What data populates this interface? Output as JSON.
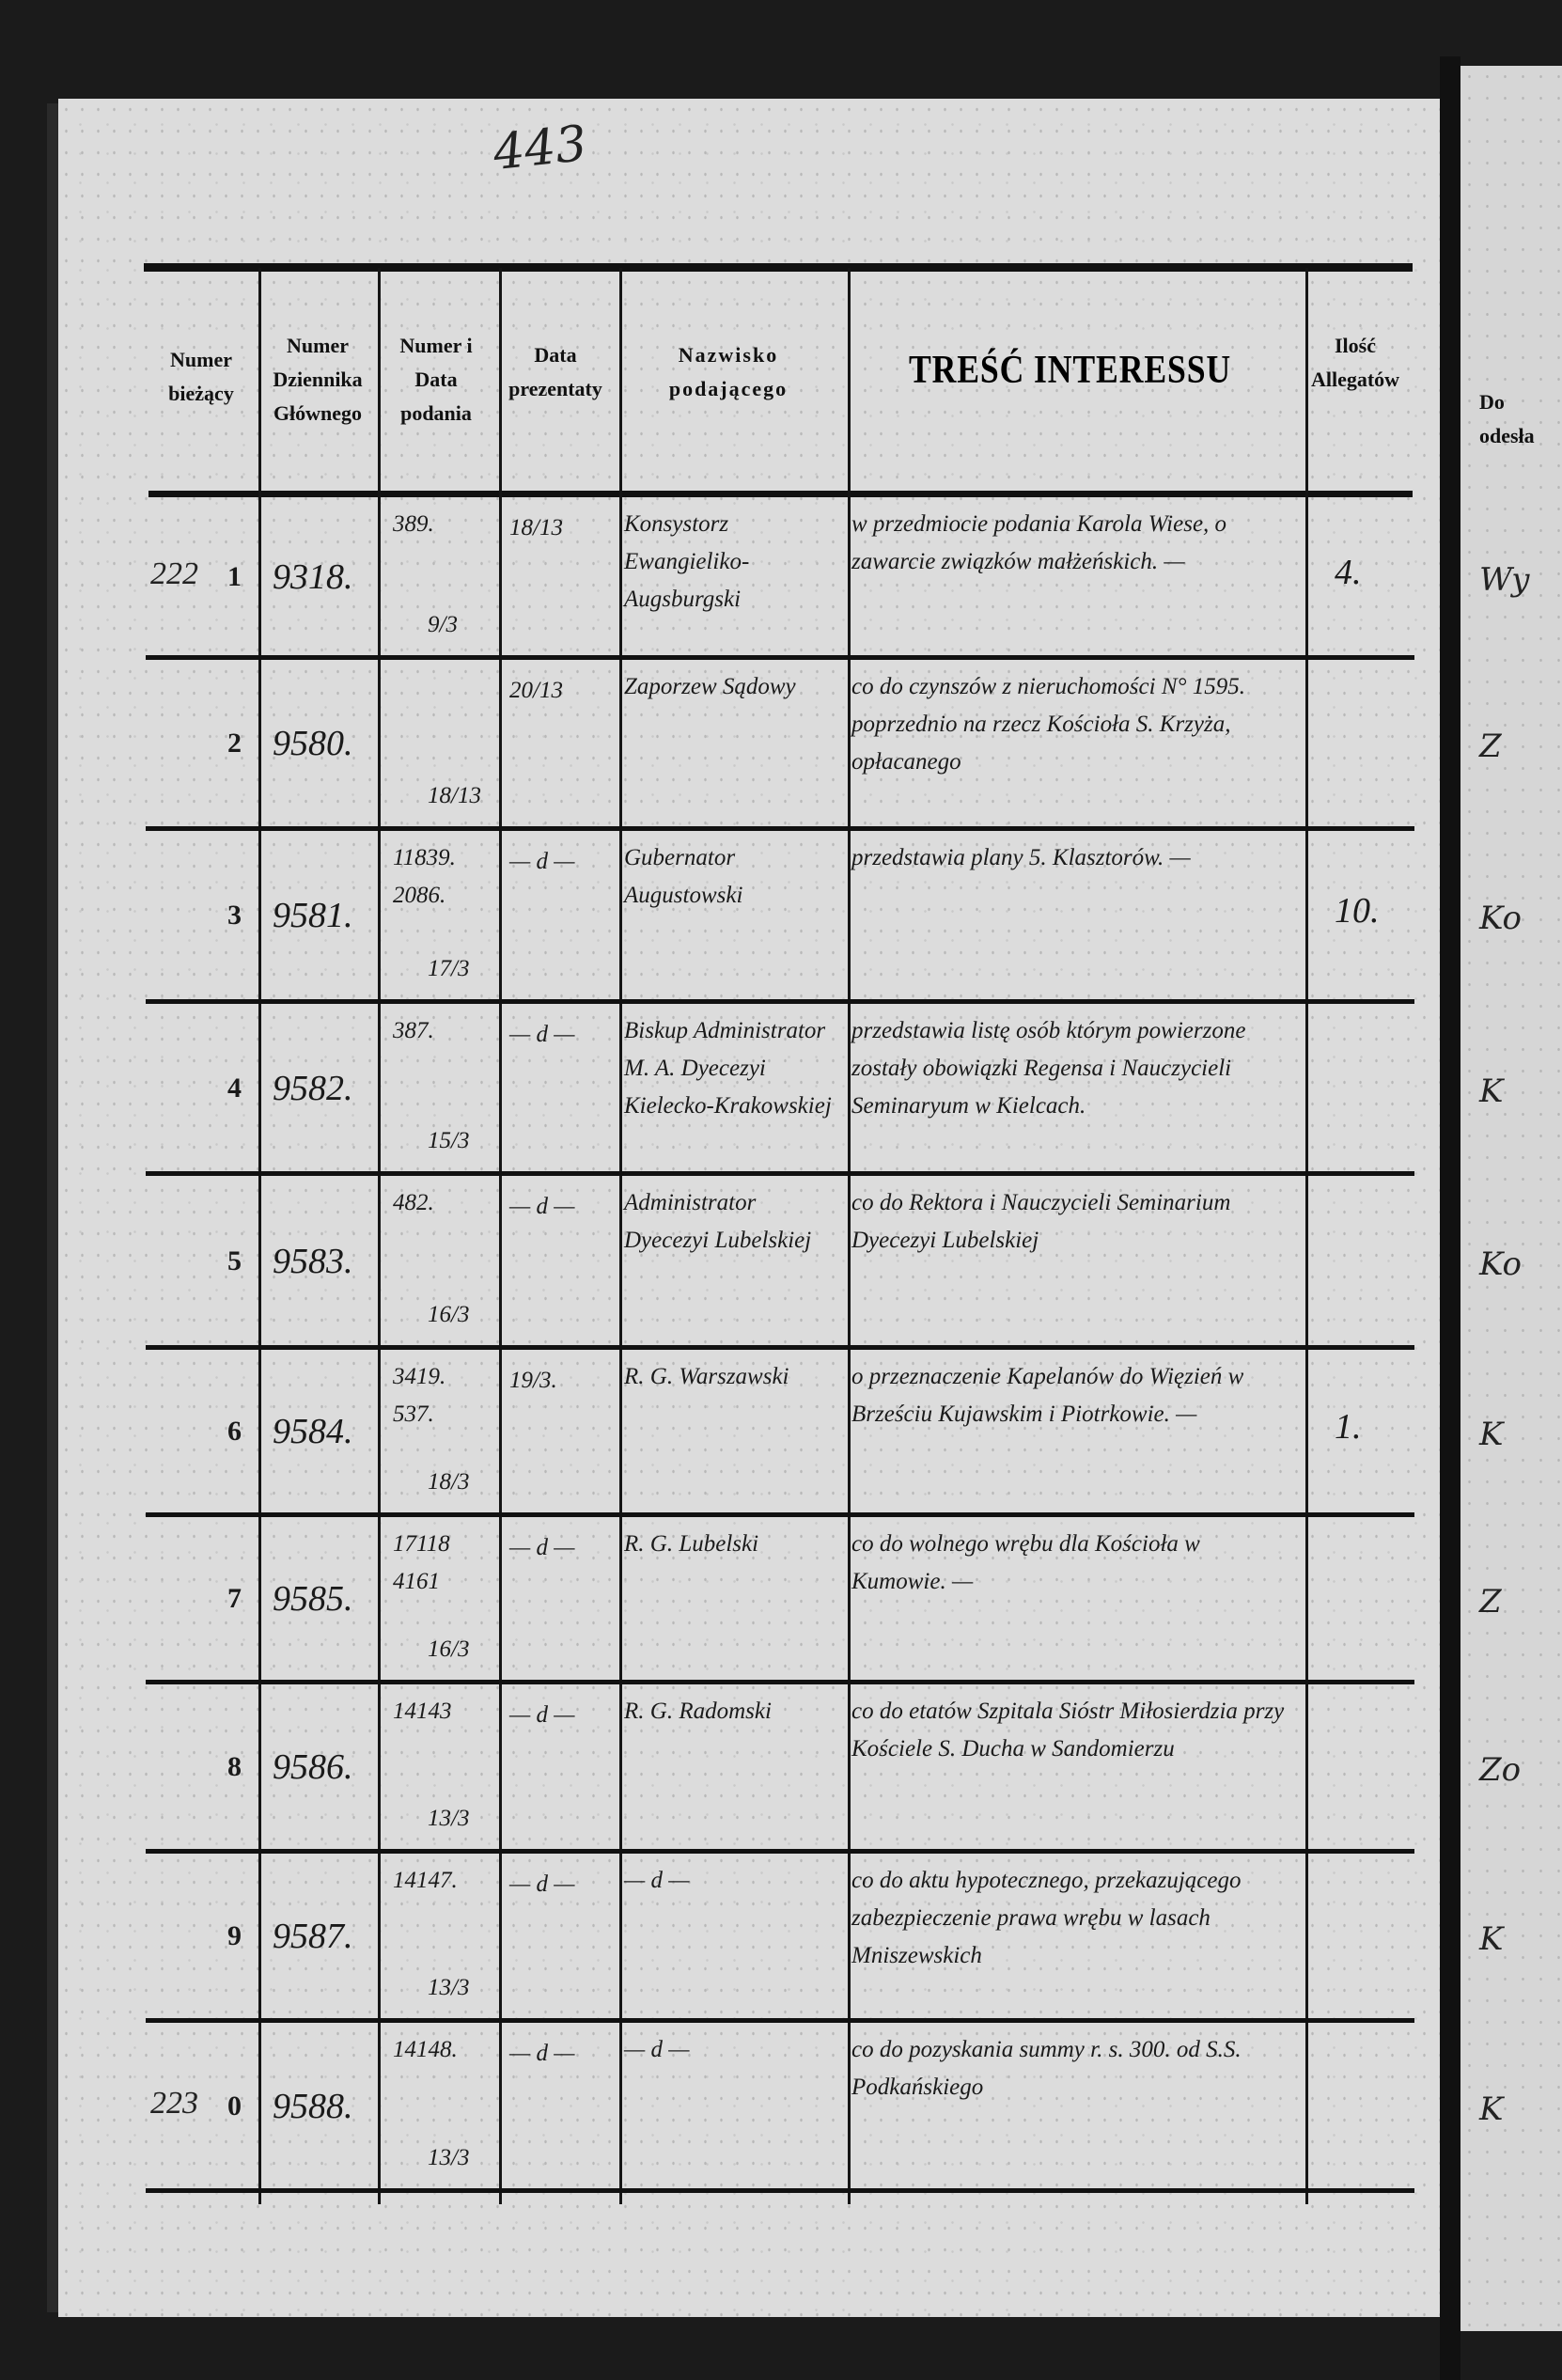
{
  "page_number": "443",
  "headers": {
    "col1": "Numer bieżący",
    "col2": "Numer Dziennika Głównego",
    "col3": "Numer i Data podania",
    "col4": "Data prezentaty",
    "col5": "Nazwisko podającego",
    "col6": "TREŚĆ INTERESSU",
    "col7": "Ilość Allegatów"
  },
  "right_page": {
    "header": "Do odesła",
    "fragments": [
      "Wy",
      "Z",
      "Ko",
      "K",
      "Ko",
      "K",
      "Z",
      "Zo",
      "K",
      "K"
    ]
  },
  "rows": [
    {
      "margin": "222",
      "no": "1",
      "journal": "9318.",
      "petition_no": "389.",
      "petition_date": "9/3",
      "presented": "18/13",
      "petitioner": "Konsystorz Ewangieliko-Augsburgski",
      "content": "w przedmiocie podania Karola Wiese, o zawarcie związków małżeńskich. —",
      "allegates": "4."
    },
    {
      "margin": "",
      "no": "2",
      "journal": "9580.",
      "petition_no": "",
      "petition_date": "18/13",
      "presented": "20/13",
      "petitioner": "Zaporzew Sądowy",
      "content": "co do czynszów z nieruchomości N° 1595. poprzednio na rzecz Kościoła S. Krzyża, opłacanego",
      "allegates": ""
    },
    {
      "margin": "",
      "no": "3",
      "journal": "9581.",
      "petition_no": "11839. 2086.",
      "petition_date": "17/3",
      "presented": "— d —",
      "petitioner": "Gubernator Augustowski",
      "content": "przedstawia plany 5. Klasztorów. —",
      "allegates": "10."
    },
    {
      "margin": "",
      "no": "4",
      "journal": "9582.",
      "petition_no": "387.",
      "petition_date": "15/3",
      "presented": "— d —",
      "petitioner": "Biskup Administrator M. A. Dyecezyi Kielecko-Krakowskiej",
      "content": "przedstawia listę osób którym powierzone zostały obowiązki Regensa i Nauczycieli Seminaryum w Kielcach.",
      "allegates": ""
    },
    {
      "margin": "",
      "no": "5",
      "journal": "9583.",
      "petition_no": "482.",
      "petition_date": "16/3",
      "presented": "— d —",
      "petitioner": "Administrator Dyecezyi Lubelskiej",
      "content": "co do Rektora i Nauczycieli Seminarium Dyecezyi Lubelskiej",
      "allegates": ""
    },
    {
      "margin": "",
      "no": "6",
      "journal": "9584.",
      "petition_no": "3419. 537.",
      "petition_date": "18/3",
      "presented": "19/3.",
      "petitioner": "R. G. Warszawski",
      "content": "o przeznaczenie Kapelanów do Więzień w Brześciu Kujawskim i Piotrkowie. —",
      "allegates": "1."
    },
    {
      "margin": "",
      "no": "7",
      "journal": "9585.",
      "petition_no": "17118 4161",
      "petition_date": "16/3",
      "presented": "— d —",
      "petitioner": "R. G. Lubelski",
      "content": "co do wolnego wrębu dla Kościoła w Kumowie. —",
      "allegates": ""
    },
    {
      "margin": "",
      "no": "8",
      "journal": "9586.",
      "petition_no": "14143",
      "petition_date": "13/3",
      "presented": "— d —",
      "petitioner": "R. G. Radomski",
      "content": "co do etatów Szpitala Sióstr Miłosierdzia przy Kościele S. Ducha w Sandomierzu",
      "allegates": ""
    },
    {
      "margin": "",
      "no": "9",
      "journal": "9587.",
      "petition_no": "14147.",
      "petition_date": "13/3",
      "presented": "— d —",
      "petitioner": "— d —",
      "content": "co do aktu hypotecznego, przekazującego zabezpieczenie prawa wrębu w lasach Mniszewskich",
      "allegates": ""
    },
    {
      "margin": "223",
      "no": "0",
      "journal": "9588.",
      "petition_no": "14148.",
      "petition_date": "13/3",
      "presented": "— d —",
      "petitioner": "— d —",
      "content": "co do pozyskania summy r. s. 300. od S.S. Podkańskiego",
      "allegates": ""
    }
  ]
}
